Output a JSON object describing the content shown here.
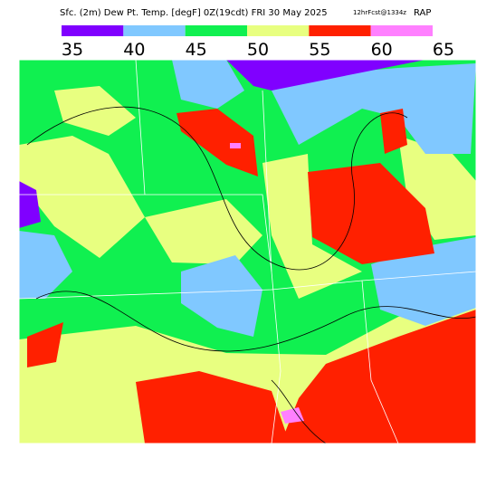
{
  "header": {
    "title": "Sfc. (2m) Dew Pt. Temp. [degF] 0Z(19cdt) FRI 30 May 2025",
    "forecast": "12hrFcst@1334z",
    "model": "RAP"
  },
  "colorbar": {
    "ticks": [
      35,
      40,
      45,
      50,
      55,
      60,
      65
    ],
    "colors": [
      "#8000ff",
      "#80c8ff",
      "#10f050",
      "#e8ff80",
      "#ff2000",
      "#ff80ff"
    ]
  }
}
